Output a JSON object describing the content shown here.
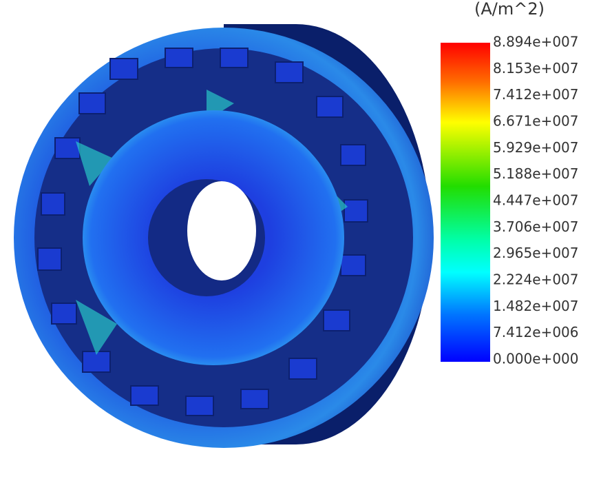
{
  "legend": {
    "title": "(A/m^2)",
    "labels": [
      "8.894e+007",
      "8.153e+007",
      "7.412e+007",
      "6.671e+007",
      "5.929e+007",
      "5.188e+007",
      "4.447e+007",
      "3.706e+007",
      "2.965e+007",
      "2.224e+007",
      "1.482e+007",
      "7.412e+006",
      "0.000e+000"
    ]
  }
}
